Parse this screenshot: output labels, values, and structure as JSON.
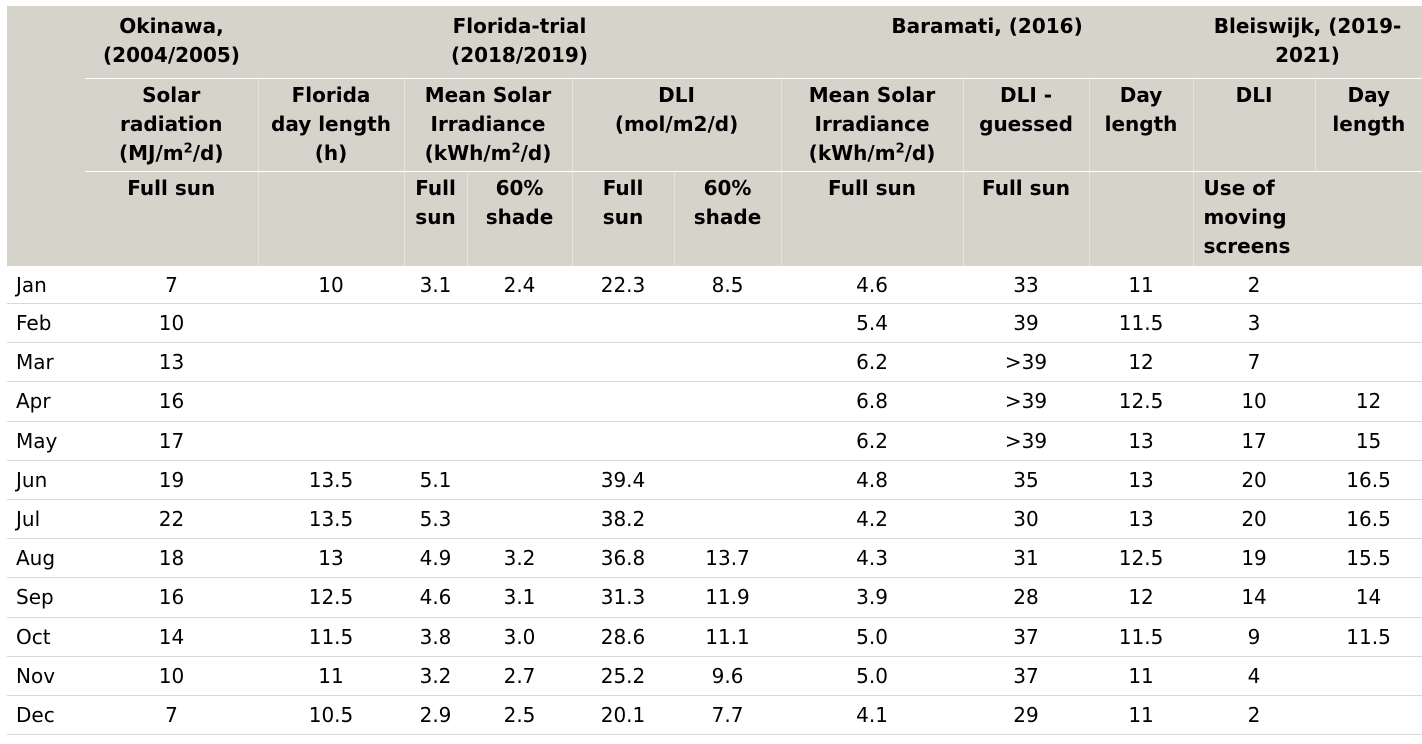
{
  "header": {
    "groups": {
      "okinawa": [
        "Okinawa,",
        "(2004/2005)"
      ],
      "florida": [
        "Florida-trial",
        "(2018/2019)"
      ],
      "baramati": [
        "Baramati, (2016)"
      ],
      "bleiswijk": [
        "Bleiswijk, (2019-",
        "2021)"
      ]
    },
    "params": {
      "solar_radiation": [
        "Solar",
        "radiation",
        "(MJ/m",
        "2",
        "/d)"
      ],
      "florida_day_length": [
        "Florida",
        "day length",
        "(h)"
      ],
      "florida_irradiance": [
        "Mean Solar",
        "Irradiance",
        "(kWh/m",
        "2",
        "/d)"
      ],
      "florida_dli": [
        "DLI",
        "(mol/m2/d)"
      ],
      "baramati_irradiance": [
        "Mean Solar",
        "Irradiance",
        "(kWh/m",
        "2",
        "/d)"
      ],
      "baramati_dli": [
        "DLI -",
        "guessed"
      ],
      "baramati_day_length": [
        "Day",
        "length"
      ],
      "bleiswijk_dli": [
        "DLI"
      ],
      "bleiswijk_day_length": [
        "Day",
        "length"
      ]
    },
    "conditions": {
      "okinawa": "Full sun",
      "irr_full": [
        "Full",
        "sun"
      ],
      "irr_shade": [
        "60%",
        "shade"
      ],
      "dli_full": [
        "Full",
        "sun"
      ],
      "dli_shade": [
        "60%",
        "shade"
      ],
      "baramati_irr": "Full sun",
      "baramati_dli": "Full sun",
      "bleiswijk": [
        "Use of",
        "moving",
        "screens"
      ]
    }
  },
  "rows": [
    [
      "Jan",
      "7",
      "10",
      "3.1",
      "2.4",
      "22.3",
      "8.5",
      "4.6",
      "33",
      "11",
      "2",
      ""
    ],
    [
      "Feb",
      "10",
      "",
      "",
      "",
      "",
      "",
      "5.4",
      "39",
      "11.5",
      "3",
      ""
    ],
    [
      "Mar",
      "13",
      "",
      "",
      "",
      "",
      "",
      "6.2",
      ">39",
      "12",
      "7",
      ""
    ],
    [
      "Apr",
      "16",
      "",
      "",
      "",
      "",
      "",
      "6.8",
      ">39",
      "12.5",
      "10",
      "12"
    ],
    [
      "May",
      "17",
      "",
      "",
      "",
      "",
      "",
      "6.2",
      ">39",
      "13",
      "17",
      "15"
    ],
    [
      "Jun",
      "19",
      "13.5",
      "5.1",
      "",
      "39.4",
      "",
      "4.8",
      "35",
      "13",
      "20",
      "16.5"
    ],
    [
      "Jul",
      "22",
      "13.5",
      "5.3",
      "",
      "38.2",
      "",
      "4.2",
      "30",
      "13",
      "20",
      "16.5"
    ],
    [
      "Aug",
      "18",
      "13",
      "4.9",
      "3.2",
      "36.8",
      "13.7",
      "4.3",
      "31",
      "12.5",
      "19",
      "15.5"
    ],
    [
      "Sep",
      "16",
      "12.5",
      "4.6",
      "3.1",
      "31.3",
      "11.9",
      "3.9",
      "28",
      "12",
      "14",
      "14"
    ],
    [
      "Oct",
      "14",
      "11.5",
      "3.8",
      "3.0",
      "28.6",
      "11.1",
      "5.0",
      "37",
      "11.5",
      "9",
      "11.5"
    ],
    [
      "Nov",
      "10",
      "11",
      "3.2",
      "2.7",
      "25.2",
      "9.6",
      "5.0",
      "37",
      "11",
      "4",
      ""
    ],
    [
      "Dec",
      "7",
      "10.5",
      "2.9",
      "2.5",
      "20.1",
      "7.7",
      "4.1",
      "29",
      "11",
      "2",
      ""
    ]
  ],
  "colors": {
    "header_bg": "#d6d3cb",
    "row_rule": "#d9d9d9"
  }
}
